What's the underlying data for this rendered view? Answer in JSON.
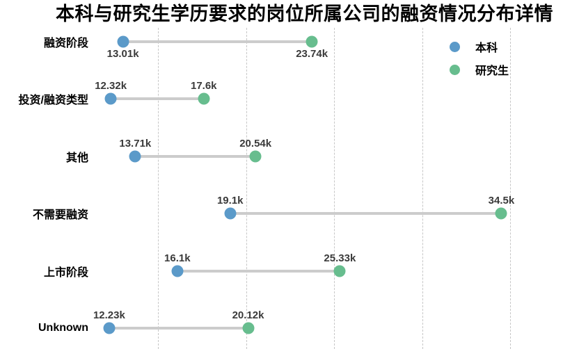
{
  "title": "本科与研究生学历要求的岗位所属公司的融资情况分布详情",
  "colors": {
    "bachelor_blue": "#5b9ac9",
    "graduate_green": "#67bd8e",
    "connector_gray": "#cccccc",
    "gridline_gray": "#c6c6c6",
    "value_label_gray": "#3a3a3a",
    "text_black": "#000000",
    "background_white": "#ffffff"
  },
  "legend": {
    "position": "top-right",
    "items": [
      {
        "label": "本科",
        "color": "#5b9ac9"
      },
      {
        "label": "研究生",
        "color": "#67bd8e"
      }
    ]
  },
  "chart_data": {
    "type": "dumbbell",
    "title": "本科与研究生学历要求的岗位所属公司的融资情况分布详情",
    "categories": [
      "融资阶段",
      "投资/融资类型",
      "其他",
      "不需要融资",
      "上市阶段",
      "Unknown"
    ],
    "series": [
      {
        "name": "本科",
        "color": "#5b9ac9",
        "values": [
          13.01,
          12.32,
          13.71,
          19.1,
          16.1,
          12.23
        ],
        "labels": [
          "13.01k",
          "12.32k",
          "13.71k",
          "19.1k",
          "16.1k",
          "12.23k"
        ]
      },
      {
        "name": "研究生",
        "color": "#67bd8e",
        "values": [
          23.74,
          17.6,
          20.54,
          34.5,
          25.33,
          20.12
        ],
        "labels": [
          "23.74k",
          "17.6k",
          "20.54k",
          "34.5k",
          "25.33k",
          "20.12k"
        ]
      }
    ],
    "unit": "k",
    "xlim": [
      6.03,
      38.0
    ],
    "grid_values": [
      15,
      20,
      25,
      30,
      35
    ],
    "grid_style": "dashed-vertical",
    "value_label_side_per_row": [
      "below",
      "above",
      "above",
      "above",
      "above",
      "above"
    ],
    "xlabel": "",
    "ylabel": ""
  }
}
